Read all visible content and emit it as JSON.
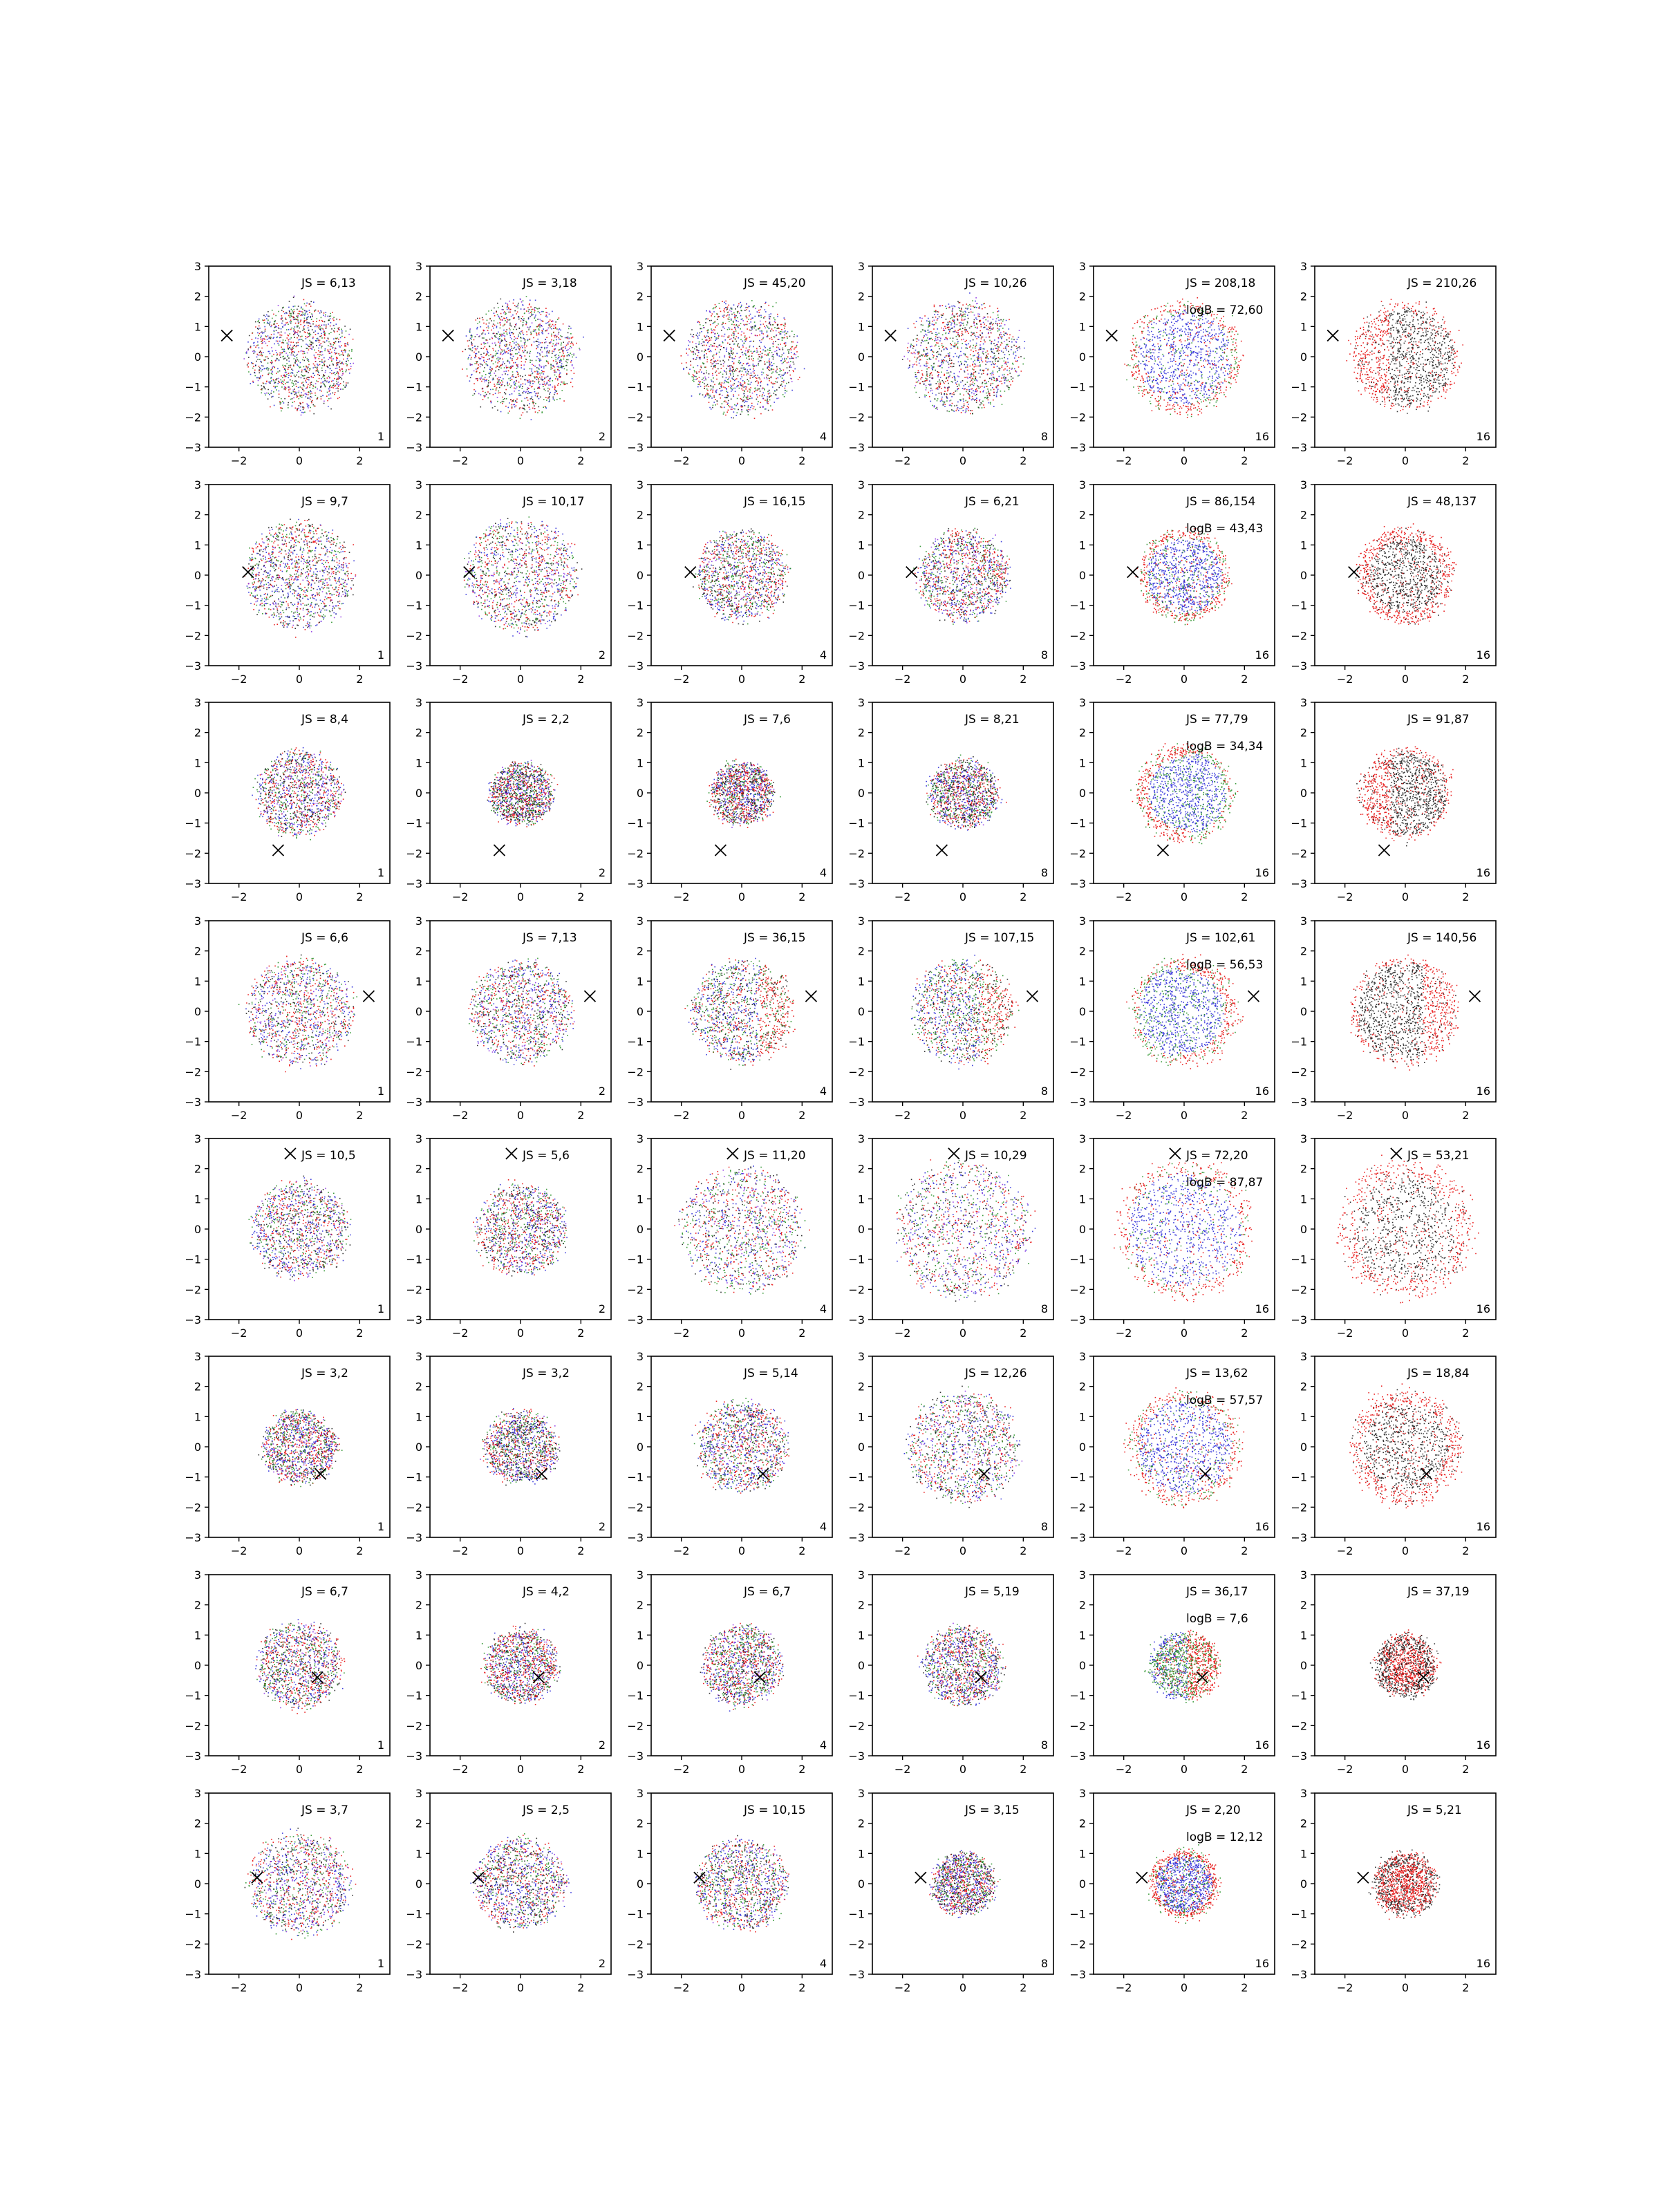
{
  "figure": {
    "background": "#ffffff"
  },
  "colors": {
    "red": "#e60000",
    "green": "#1a8a1a",
    "blue": "#1f1fd6",
    "black": "#111111",
    "purple": "#8a2be2",
    "axes": "#000000"
  },
  "axis": {
    "xticks": [
      "−2",
      "0",
      "2"
    ],
    "yticks": [
      "3",
      "2",
      "1",
      "0",
      "−1",
      "−2",
      "−3"
    ],
    "xlim": [
      -3,
      3
    ],
    "ylim": [
      -3,
      3
    ]
  },
  "chart_data": {
    "type": "scatter",
    "layout": "8 rows × 6 columns grid of scatter panels",
    "rows": [
      {
        "marker": [
          -2.4,
          0.7
        ],
        "panels": [
          {
            "js": "JS = 6,13",
            "logB": "",
            "corner": "1",
            "spread": 1.9,
            "mix": "multi"
          },
          {
            "js": "JS = 3,18",
            "logB": "",
            "corner": "2",
            "spread": 2.0,
            "mix": "multi"
          },
          {
            "js": "JS = 45,20",
            "logB": "",
            "corner": "4",
            "spread": 2.0,
            "mix": "multi"
          },
          {
            "js": "JS = 10,26",
            "logB": "",
            "corner": "8",
            "spread": 2.0,
            "mix": "multi"
          },
          {
            "js": "JS = 208,18",
            "logB": "logB = 72,60",
            "corner": "16",
            "spread": 2.0,
            "mix": "ring-blue"
          },
          {
            "js": "JS = 210,26",
            "logB": "",
            "corner": "16",
            "spread": 1.9,
            "mix": "red-black-left"
          }
        ]
      },
      {
        "marker": [
          -1.7,
          0.1
        ],
        "panels": [
          {
            "js": "JS = 9,7",
            "logB": "",
            "corner": "1",
            "spread": 1.9,
            "mix": "multi"
          },
          {
            "js": "JS = 10,17",
            "logB": "",
            "corner": "2",
            "spread": 2.0,
            "mix": "multi"
          },
          {
            "js": "JS = 16,15",
            "logB": "",
            "corner": "4",
            "spread": 1.6,
            "mix": "multi"
          },
          {
            "js": "JS = 6,21",
            "logB": "",
            "corner": "8",
            "spread": 1.6,
            "mix": "multi"
          },
          {
            "js": "JS = 86,154",
            "logB": "logB = 43,43",
            "corner": "16",
            "spread": 1.6,
            "mix": "ring-blue"
          },
          {
            "js": "JS = 48,137",
            "logB": "",
            "corner": "16",
            "spread": 1.7,
            "mix": "red-black-ring"
          }
        ]
      },
      {
        "marker": [
          -0.7,
          -1.9
        ],
        "panels": [
          {
            "js": "JS = 8,4",
            "logB": "",
            "corner": "1",
            "spread": 1.5,
            "mix": "multi"
          },
          {
            "js": "JS = 2,2",
            "logB": "",
            "corner": "2",
            "spread": 1.1,
            "mix": "multi"
          },
          {
            "js": "JS = 7,6",
            "logB": "",
            "corner": "4",
            "spread": 1.1,
            "mix": "multi"
          },
          {
            "js": "JS = 8,21",
            "logB": "",
            "corner": "8",
            "spread": 1.2,
            "mix": "multi"
          },
          {
            "js": "JS = 77,79",
            "logB": "logB = 34,34",
            "corner": "16",
            "spread": 1.7,
            "mix": "ring-blue-left"
          },
          {
            "js": "JS = 91,87",
            "logB": "",
            "corner": "16",
            "spread": 1.6,
            "mix": "red-black-left"
          }
        ]
      },
      {
        "marker": [
          2.3,
          0.5
        ],
        "panels": [
          {
            "js": "JS = 6,6",
            "logB": "",
            "corner": "1",
            "spread": 1.9,
            "mix": "multi"
          },
          {
            "js": "JS = 7,13",
            "logB": "",
            "corner": "2",
            "spread": 1.8,
            "mix": "multi"
          },
          {
            "js": "JS = 36,15",
            "logB": "",
            "corner": "4",
            "spread": 1.8,
            "mix": "multi-red-right"
          },
          {
            "js": "JS = 107,15",
            "logB": "",
            "corner": "8",
            "spread": 1.8,
            "mix": "multi-red-right"
          },
          {
            "js": "JS = 102,61",
            "logB": "logB = 56,53",
            "corner": "16",
            "spread": 1.9,
            "mix": "ring-blue-right"
          },
          {
            "js": "JS = 140,56",
            "logB": "",
            "corner": "16",
            "spread": 1.9,
            "mix": "red-black-right"
          }
        ]
      },
      {
        "marker": [
          -0.3,
          2.5
        ],
        "panels": [
          {
            "js": "JS = 10,5",
            "logB": "",
            "corner": "1",
            "spread": 1.7,
            "mix": "multi"
          },
          {
            "js": "JS = 5,6",
            "logB": "",
            "corner": "2",
            "spread": 1.6,
            "mix": "multi"
          },
          {
            "js": "JS = 11,20",
            "logB": "",
            "corner": "4",
            "spread": 2.2,
            "mix": "multi"
          },
          {
            "js": "JS = 10,29",
            "logB": "",
            "corner": "8",
            "spread": 2.4,
            "mix": "multi"
          },
          {
            "js": "JS = 72,20",
            "logB": "logB = 87,87",
            "corner": "16",
            "spread": 2.4,
            "mix": "ring-blue"
          },
          {
            "js": "JS = 53,21",
            "logB": "",
            "corner": "16",
            "spread": 2.4,
            "mix": "red-black-ring"
          }
        ]
      },
      {
        "marker": [
          0.7,
          -0.9
        ],
        "panels": [
          {
            "js": "JS = 3,2",
            "logB": "",
            "corner": "1",
            "spread": 1.3,
            "mix": "multi"
          },
          {
            "js": "JS = 3,2",
            "logB": "",
            "corner": "2",
            "spread": 1.3,
            "mix": "multi"
          },
          {
            "js": "JS = 5,14",
            "logB": "",
            "corner": "4",
            "spread": 1.6,
            "mix": "multi"
          },
          {
            "js": "JS = 12,26",
            "logB": "",
            "corner": "8",
            "spread": 2.0,
            "mix": "multi"
          },
          {
            "js": "JS = 13,62",
            "logB": "logB = 57,57",
            "corner": "16",
            "spread": 2.0,
            "mix": "ring-blue"
          },
          {
            "js": "JS = 18,84",
            "logB": "",
            "corner": "16",
            "spread": 2.0,
            "mix": "red-black-ring"
          }
        ]
      },
      {
        "marker": [
          0.6,
          -0.4
        ],
        "panels": [
          {
            "js": "JS = 6,7",
            "logB": "",
            "corner": "1",
            "spread": 1.5,
            "mix": "multi"
          },
          {
            "js": "JS = 4,2",
            "logB": "",
            "corner": "2",
            "spread": 1.3,
            "mix": "multi"
          },
          {
            "js": "JS = 6,7",
            "logB": "",
            "corner": "4",
            "spread": 1.4,
            "mix": "multi"
          },
          {
            "js": "JS = 5,19",
            "logB": "",
            "corner": "8",
            "spread": 1.4,
            "mix": "multi"
          },
          {
            "js": "JS = 36,17",
            "logB": "logB = 7,6",
            "corner": "16",
            "spread": 1.2,
            "mix": "blue-red-right"
          },
          {
            "js": "JS = 37,19",
            "logB": "",
            "corner": "16",
            "spread": 1.1,
            "mix": "red-black-center"
          }
        ]
      },
      {
        "marker": [
          -1.4,
          0.2
        ],
        "panels": [
          {
            "js": "JS = 3,7",
            "logB": "",
            "corner": "1",
            "spread": 1.8,
            "mix": "multi"
          },
          {
            "js": "JS = 2,5",
            "logB": "",
            "corner": "2",
            "spread": 1.6,
            "mix": "multi"
          },
          {
            "js": "JS = 10,15",
            "logB": "",
            "corner": "4",
            "spread": 1.6,
            "mix": "multi"
          },
          {
            "js": "JS = 3,15",
            "logB": "",
            "corner": "8",
            "spread": 1.1,
            "mix": "multi"
          },
          {
            "js": "JS = 2,20",
            "logB": "logB = 12,12",
            "corner": "16",
            "spread": 1.2,
            "mix": "ring-blue"
          },
          {
            "js": "JS = 5,21",
            "logB": "",
            "corner": "16",
            "spread": 1.1,
            "mix": "red-black-center"
          }
        ]
      }
    ]
  }
}
